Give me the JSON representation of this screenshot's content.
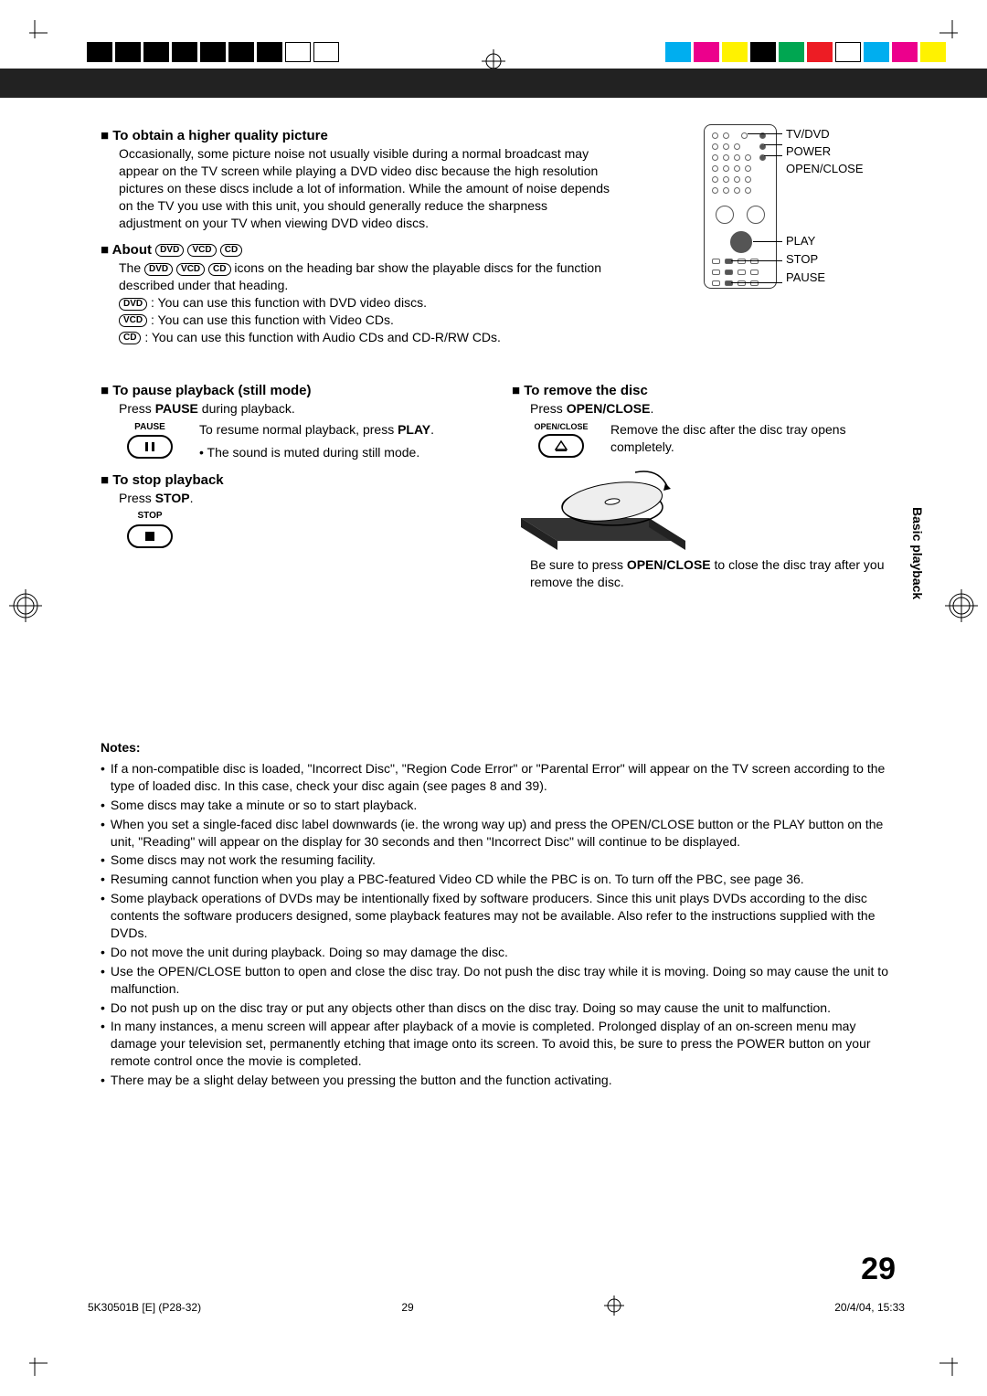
{
  "side_tab": "Basic playback",
  "page_number": "29",
  "footer": {
    "doc_code": "5K30501B [E] (P28-32)",
    "page_small": "29",
    "date": "20/4/04, 15:33"
  },
  "sec_quality": {
    "heading": "To obtain a higher quality picture",
    "body": "Occasionally, some picture noise not usually visible during a normal broadcast may appear on the TV screen while playing a DVD video disc because the high resolution pictures on these discs include a lot of information. While the amount of noise depends on the TV you use with this unit, you should generally reduce the sharpness adjustment on your TV when viewing DVD video discs."
  },
  "sec_about": {
    "heading": "About",
    "badge1": "DVD",
    "badge2": "VCD",
    "badge3": "CD",
    "body1": "The ",
    "body1b": " icons on the heading bar show the playable discs for the function described under that heading.",
    "line_dvd": " : You can use this function with DVD video discs.",
    "line_vcd": " : You can use this function with Video CDs.",
    "line_cd": " : You can use this function with Audio CDs and CD-R/RW CDs."
  },
  "remote_labels": {
    "tvdvd": "TV/DVD",
    "power": "POWER",
    "openclose": "OPEN/CLOSE",
    "play": "PLAY",
    "stop": "STOP",
    "pause": "PAUSE"
  },
  "sec_pause": {
    "heading": "To pause playback (still mode)",
    "line1a": "Press ",
    "line1b": "PAUSE",
    "line1c": " during playback.",
    "icon_label": "PAUSE",
    "resume_a": "To resume normal playback, press ",
    "resume_b": "PLAY",
    "resume_c": ".",
    "bullet": "The sound is muted during still mode."
  },
  "sec_stop": {
    "heading": "To stop playback",
    "line1a": "Press ",
    "line1b": "STOP",
    "line1c": ".",
    "icon_label": "STOP"
  },
  "sec_remove": {
    "heading": "To remove the disc",
    "line1a": "Press ",
    "line1b": "OPEN/CLOSE",
    "line1c": ".",
    "icon_label": "OPEN/CLOSE",
    "text": "Remove the disc after the disc tray opens completely.",
    "note_a": "Be sure to press ",
    "note_b": "OPEN/CLOSE",
    "note_c": " to close the disc tray after you remove the disc."
  },
  "notes": {
    "heading": "Notes:",
    "items": [
      "If a non-compatible disc is loaded, \"Incorrect Disc\", \"Region Code Error\" or \"Parental Error\" will appear on the TV screen according to the type of loaded disc. In this case, check your disc again (see pages 8 and 39).",
      "Some discs may take a minute or so to start playback.",
      "When you set a single-faced disc label downwards (ie. the wrong way up) and press the OPEN/CLOSE button or the PLAY button on the unit, \"Reading\" will appear on the display for 30 seconds and then \"Incorrect Disc\" will continue to be displayed.",
      "Some discs may not work the resuming facility.",
      "Resuming cannot function when you play a PBC-featured Video CD while the PBC is on. To turn off the PBC, see page 36.",
      "Some playback operations of DVDs may be intentionally fixed by software producers. Since this unit plays DVDs according to the disc contents the software producers designed, some playback features may not be available. Also refer to the instructions supplied with the DVDs.",
      "Do not move the unit during playback. Doing so may damage the disc.",
      "Use the OPEN/CLOSE button to open and close the disc tray. Do not push the disc tray while it is moving. Doing so may cause the unit to malfunction.",
      "Do not push up on the disc tray or put any objects other than discs on the disc tray. Doing so may cause the unit to malfunction.",
      "In many instances, a menu screen will appear after playback of a movie is completed. Prolonged display of an on-screen menu may damage your television set, permanently etching that image onto its screen. To avoid this, be sure to press the POWER button on your remote control once the movie is completed.",
      "There may be a slight delay between you pressing the button and the function activating."
    ]
  },
  "print_colors": [
    "#00aeef",
    "#ec008c",
    "#fff200",
    "#000000",
    "#00a651",
    "#ed1c24",
    "#ffffff",
    "#00aeef",
    "#ec008c",
    "#fff200"
  ]
}
